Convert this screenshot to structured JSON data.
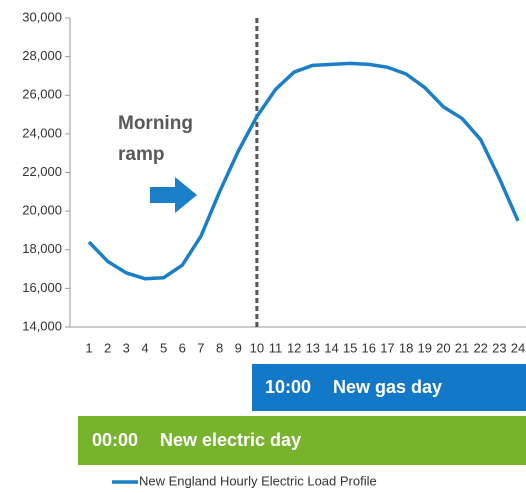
{
  "chart_data": {
    "type": "line",
    "categories": [
      "1",
      "2",
      "3",
      "4",
      "5",
      "6",
      "7",
      "8",
      "9",
      "10",
      "11",
      "12",
      "13",
      "14",
      "15",
      "16",
      "17",
      "18",
      "19",
      "20",
      "21",
      "22",
      "23",
      "24"
    ],
    "series": [
      {
        "name": "New England Hourly Electric Load Profile",
        "color": "#1a7fc6",
        "values": [
          18400,
          17400,
          16800,
          16500,
          16550,
          17200,
          18700,
          21000,
          23100,
          24900,
          26300,
          27200,
          27550,
          27600,
          27650,
          27600,
          27450,
          27100,
          26400,
          25400,
          24800,
          23700,
          21700,
          19500
        ]
      }
    ],
    "ylim": [
      14000,
      30000
    ],
    "yticks": [
      {
        "value": 14000,
        "label": "14,000"
      },
      {
        "value": 16000,
        "label": "16,000"
      },
      {
        "value": 18000,
        "label": "18,000"
      },
      {
        "value": 20000,
        "label": "20,000"
      },
      {
        "value": 22000,
        "label": "22,000"
      },
      {
        "value": 24000,
        "label": "24,000"
      },
      {
        "value": 26000,
        "label": "26,000"
      },
      {
        "value": 28000,
        "label": "28,000"
      },
      {
        "value": 30000,
        "label": "30,000"
      }
    ],
    "vline_category": "10",
    "annotation": [
      "Morning",
      "ramp"
    ],
    "gas_day": {
      "time": "10:00",
      "label": "New gas day",
      "color": "#1478c8"
    },
    "electric_day": {
      "time": "00:00",
      "label": "New electric day",
      "color": "#78b32e"
    },
    "legend": "bottom"
  }
}
